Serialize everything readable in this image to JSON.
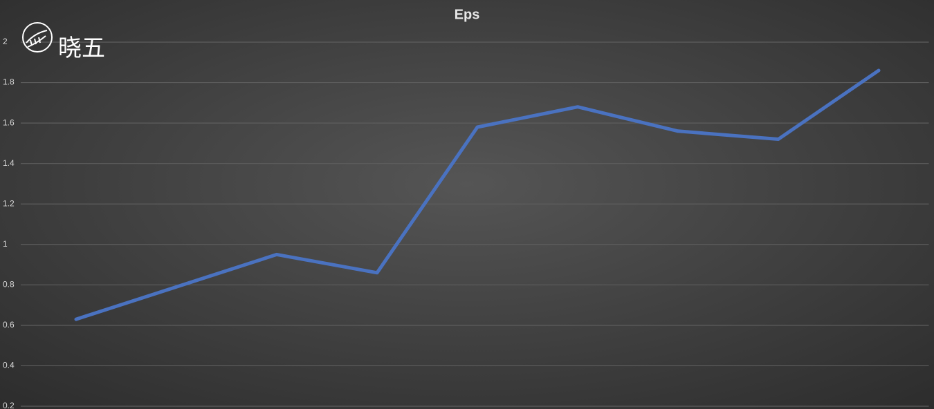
{
  "chart_data": {
    "type": "line",
    "title": "Eps",
    "watermark": "晓五",
    "categories": [
      null,
      null,
      null,
      null,
      null,
      null,
      null,
      null,
      null
    ],
    "series": [
      {
        "name": "Eps",
        "color": "#4a72c0",
        "values": [
          0.63,
          0.79,
          0.95,
          0.86,
          1.58,
          1.68,
          1.56,
          1.52,
          1.86
        ]
      }
    ],
    "ylim": [
      0.2,
      2
    ],
    "yticks": [
      0.2,
      0.4,
      0.6,
      0.8,
      1,
      1.2,
      1.4,
      1.6,
      1.8,
      2
    ],
    "grid": true,
    "legend": false
  }
}
